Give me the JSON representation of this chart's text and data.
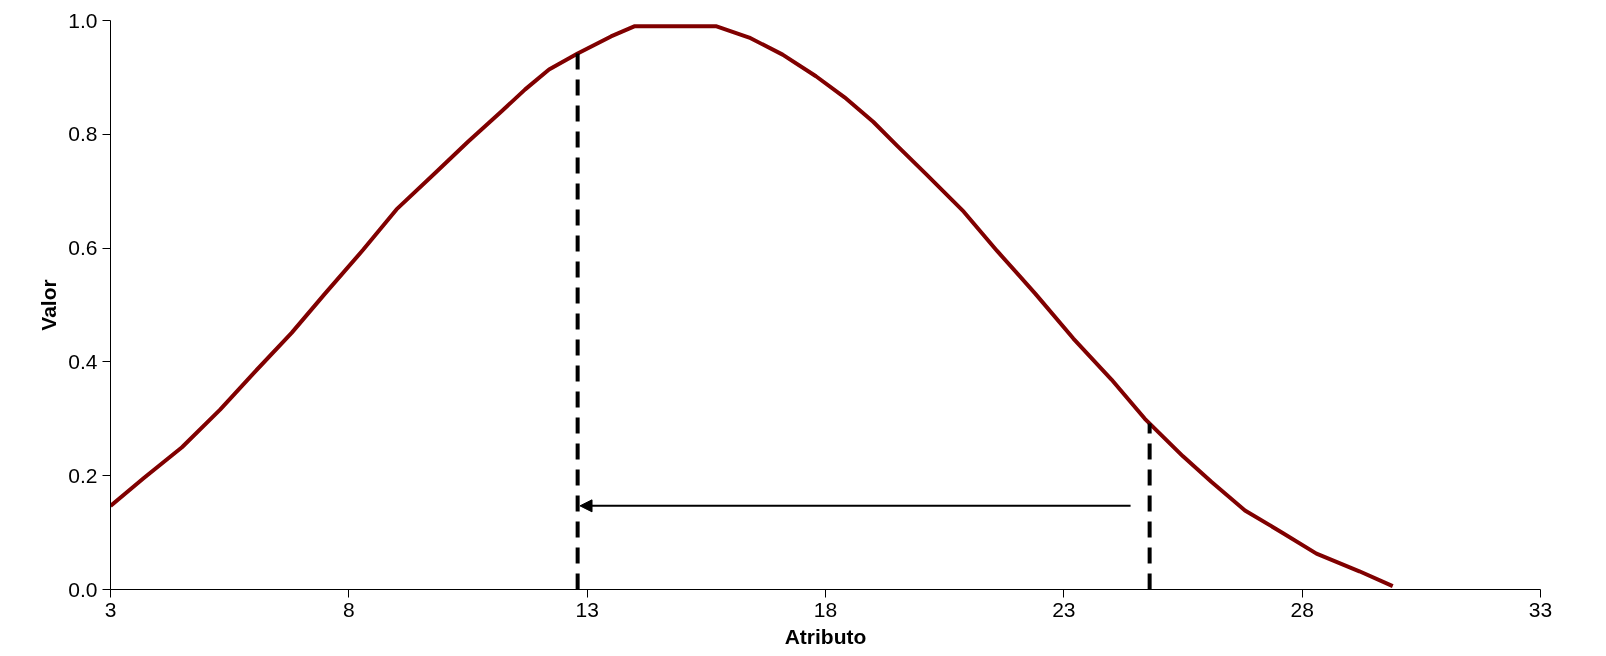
{
  "chart_data": {
    "type": "line",
    "xlabel": "Atributo",
    "ylabel": "Valor",
    "xlim": [
      3,
      33
    ],
    "xticks": [
      3,
      8,
      13,
      18,
      23,
      28,
      33
    ],
    "ylim": [
      0,
      1.0
    ],
    "yticks": [
      {
        "value": 0,
        "label": "0.0"
      },
      {
        "value": 0.2,
        "label": "0.2"
      },
      {
        "value": 0.4,
        "label": "0.4"
      },
      {
        "value": 0.6,
        "label": "0.6"
      },
      {
        "value": 0.8,
        "label": "0.8"
      },
      {
        "value": 1.0,
        "label": "1.0"
      }
    ],
    "grid": false,
    "marker": "none",
    "line_style": "solid",
    "series": [
      {
        "color": "#800000",
        "x": [
          3,
          3.7,
          4.5,
          5.3,
          6.0,
          6.8,
          7.5,
          8.3,
          9.0,
          9.8,
          10.5,
          11.2,
          11.7,
          12.2,
          12.8,
          13.5,
          14.0,
          15.1,
          15.7,
          16.4,
          17.1,
          17.8,
          18.4,
          19.0,
          19.5,
          20.1,
          20.9,
          21.6,
          22.4,
          23.2,
          24.0,
          24.7,
          25.5,
          26.1,
          26.8,
          27.6,
          28.3,
          29.2,
          29.9
        ],
        "values": [
          0.147,
          0.196,
          0.25,
          0.316,
          0.38,
          0.451,
          0.52,
          0.597,
          0.668,
          0.731,
          0.787,
          0.84,
          0.879,
          0.914,
          0.942,
          0.972,
          0.99,
          0.99,
          0.99,
          0.97,
          0.94,
          0.902,
          0.865,
          0.822,
          0.78,
          0.731,
          0.664,
          0.595,
          0.52,
          0.441,
          0.369,
          0.3,
          0.234,
          0.189,
          0.139,
          0.099,
          0.063,
          0.032,
          0.006
        ]
      }
    ],
    "ref_lines": [
      {
        "axis": "x",
        "value": 12.8,
        "color": "#000000",
        "line_style": "dashed"
      },
      {
        "axis": "x",
        "value": 24.8,
        "color": "#000000",
        "line_style": "dashed"
      }
    ]
  }
}
